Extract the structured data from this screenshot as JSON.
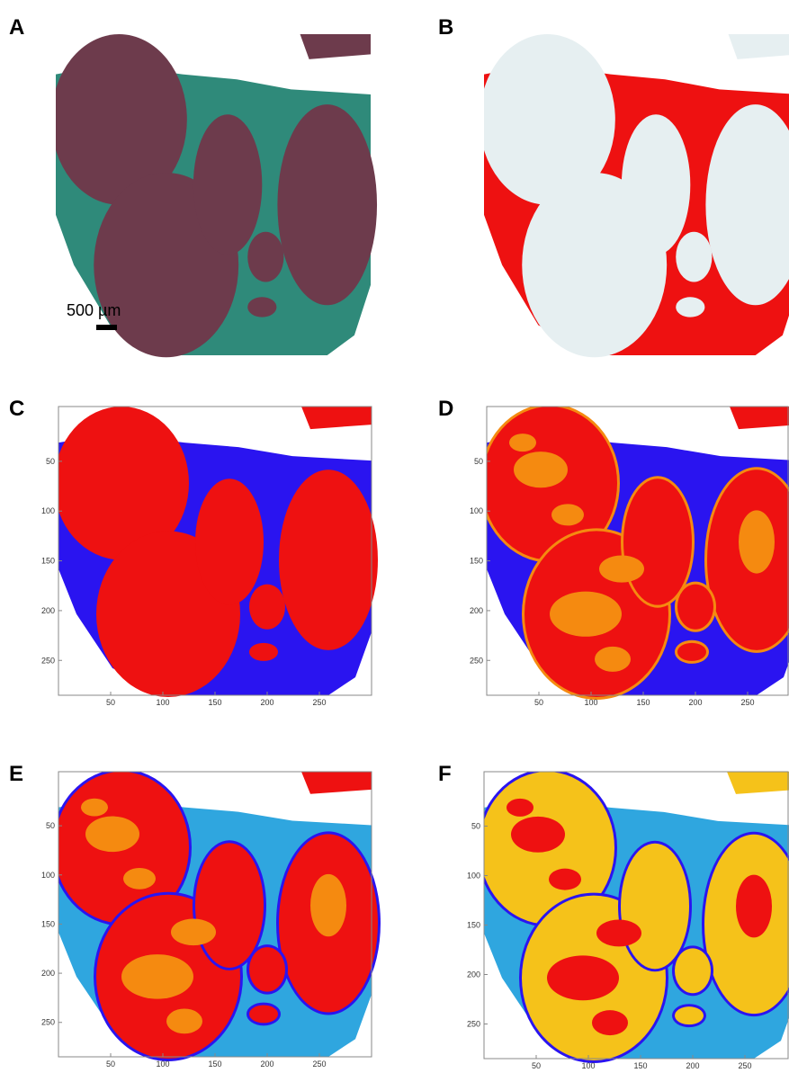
{
  "panels": [
    {
      "label": "A",
      "scale_bar": "500 µm"
    },
    {
      "label": "B"
    },
    {
      "label": "C",
      "xticks": [
        50,
        100,
        150,
        200,
        250
      ],
      "yticks": [
        50,
        100,
        150,
        200,
        250
      ]
    },
    {
      "label": "D",
      "xticks": [
        50,
        100,
        150,
        200,
        250
      ],
      "yticks": [
        50,
        100,
        150,
        200,
        250
      ]
    },
    {
      "label": "E",
      "xticks": [
        50,
        100,
        150,
        200,
        250
      ],
      "yticks": [
        50,
        100,
        150,
        200,
        250
      ]
    },
    {
      "label": "F",
      "xticks": [
        50,
        100,
        150,
        200,
        250
      ],
      "yticks": [
        50,
        100,
        150,
        200,
        250
      ]
    }
  ]
}
